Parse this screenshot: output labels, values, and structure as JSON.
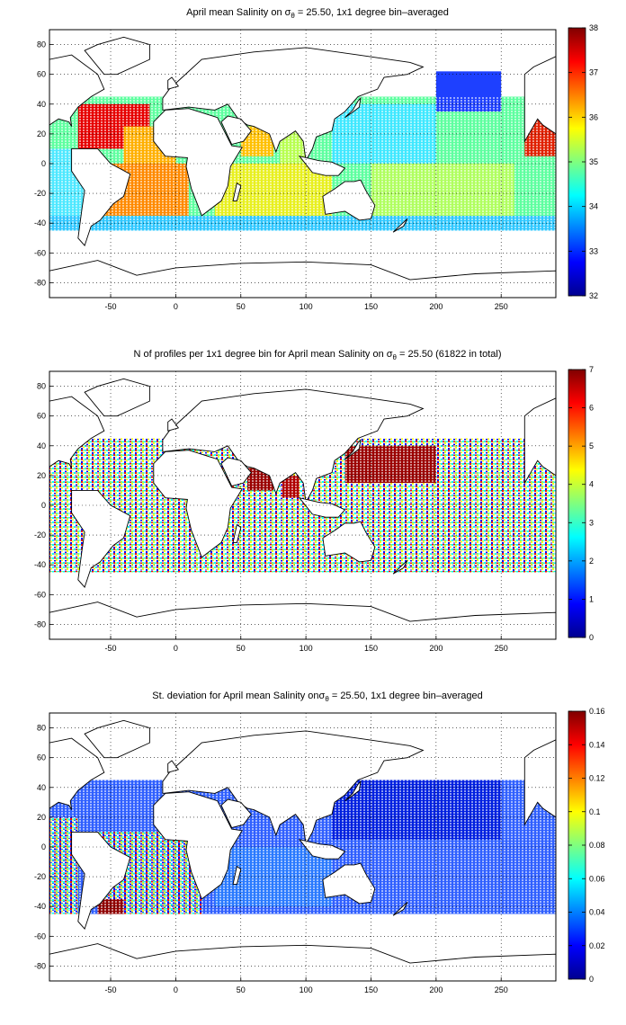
{
  "chart_data": [
    {
      "type": "heatmap",
      "title_parts": [
        "April mean Salinity on ",
        "σ",
        "θ",
        " = 25.50, 1x1 degree bin–averaged"
      ],
      "xticks": [
        "-50",
        "0",
        "50",
        "100",
        "150",
        "200",
        "250"
      ],
      "yticks": [
        "80",
        "60",
        "40",
        "20",
        "0",
        "-20",
        "-40",
        "-60",
        "-80"
      ],
      "xlim": [
        -97,
        292
      ],
      "ylim": [
        -90,
        90
      ],
      "grid": true,
      "colorbar": {
        "range": [
          32,
          38
        ],
        "ticks": [
          "38",
          "37",
          "36",
          "35",
          "34",
          "33",
          "32"
        ]
      },
      "value_regions": [
        {
          "region": "North Atlantic subtropics",
          "lon": [
            -75,
            -20
          ],
          "lat": [
            10,
            40
          ],
          "value": 37.2
        },
        {
          "region": "South Atlantic subtropics",
          "lon": [
            -45,
            -5
          ],
          "lat": [
            -35,
            -10
          ],
          "value": 36.6
        },
        {
          "region": "Arabian Sea",
          "lon": [
            50,
            75
          ],
          "lat": [
            5,
            25
          ],
          "value": 36.0
        },
        {
          "region": "Indian Ocean",
          "lon": [
            30,
            115
          ],
          "lat": [
            -40,
            0
          ],
          "value": 35.4
        },
        {
          "region": "Western Pacific",
          "lon": [
            120,
            180
          ],
          "lat": [
            0,
            30
          ],
          "value": 34.8
        },
        {
          "region": "Eastern North Pacific",
          "lon": [
            200,
            240
          ],
          "lat": [
            40,
            60
          ],
          "value": 32.5
        },
        {
          "region": "Southern Ocean edge",
          "lon": [
            -97,
            292
          ],
          "lat": [
            -45,
            -35
          ],
          "value": 34.3
        }
      ]
    },
    {
      "type": "heatmap",
      "title_parts": [
        "N of profiles per 1x1 degree bin for April mean Salinity on ",
        "σ",
        "θ",
        " = 25.50 (61822 in total)"
      ],
      "xticks": [
        "-50",
        "0",
        "50",
        "100",
        "150",
        "200",
        "250"
      ],
      "yticks": [
        "80",
        "60",
        "40",
        "20",
        "0",
        "-20",
        "-40",
        "-60",
        "-80"
      ],
      "xlim": [
        -97,
        292
      ],
      "ylim": [
        -90,
        90
      ],
      "grid": true,
      "colorbar": {
        "range": [
          0,
          7
        ],
        "ticks": [
          "7",
          "6",
          "5",
          "4",
          "3",
          "2",
          "1",
          "0"
        ]
      },
      "value_regions": [
        {
          "region": "Northwest Pacific",
          "lon": [
            130,
            200
          ],
          "lat": [
            15,
            40
          ],
          "value": 7
        },
        {
          "region": "Arabian Sea",
          "lon": [
            55,
            75
          ],
          "lat": [
            10,
            25
          ],
          "value": 6.5
        },
        {
          "region": "Bay of Bengal",
          "lon": [
            82,
            95
          ],
          "lat": [
            5,
            20
          ],
          "value": 6
        },
        {
          "region": "Global ocean typical",
          "lon": [
            -97,
            292
          ],
          "lat": [
            -45,
            45
          ],
          "value": 2.5
        }
      ]
    },
    {
      "type": "heatmap",
      "title_parts": [
        "St. deviation for April mean Salinity on",
        "σ",
        "θ",
        " = 25.50, 1x1 degree bin–averaged"
      ],
      "xticks": [
        "-50",
        "0",
        "50",
        "100",
        "150",
        "200",
        "250"
      ],
      "yticks": [
        "80",
        "60",
        "40",
        "20",
        "0",
        "-20",
        "-40",
        "-60",
        "-80"
      ],
      "xlim": [
        -97,
        292
      ],
      "ylim": [
        -90,
        90
      ],
      "grid": true,
      "colorbar": {
        "range": [
          0,
          0.16
        ],
        "ticks": [
          "0.16",
          "0.14",
          "0.12",
          "0.1",
          "0.08",
          "0.06",
          "0.04",
          "0.02",
          "0"
        ]
      },
      "value_regions": [
        {
          "region": "North Pacific",
          "lon": [
            120,
            250
          ],
          "lat": [
            5,
            45
          ],
          "value": 0.015
        },
        {
          "region": "South Atlantic west",
          "lon": [
            -60,
            -40
          ],
          "lat": [
            -45,
            -30
          ],
          "value": 0.14
        },
        {
          "region": "Indian Ocean",
          "lon": [
            30,
            115
          ],
          "lat": [
            -40,
            0
          ],
          "value": 0.04
        },
        {
          "region": "Global ocean typical",
          "lon": [
            -97,
            292
          ],
          "lat": [
            -45,
            45
          ],
          "value": 0.035
        }
      ]
    }
  ]
}
